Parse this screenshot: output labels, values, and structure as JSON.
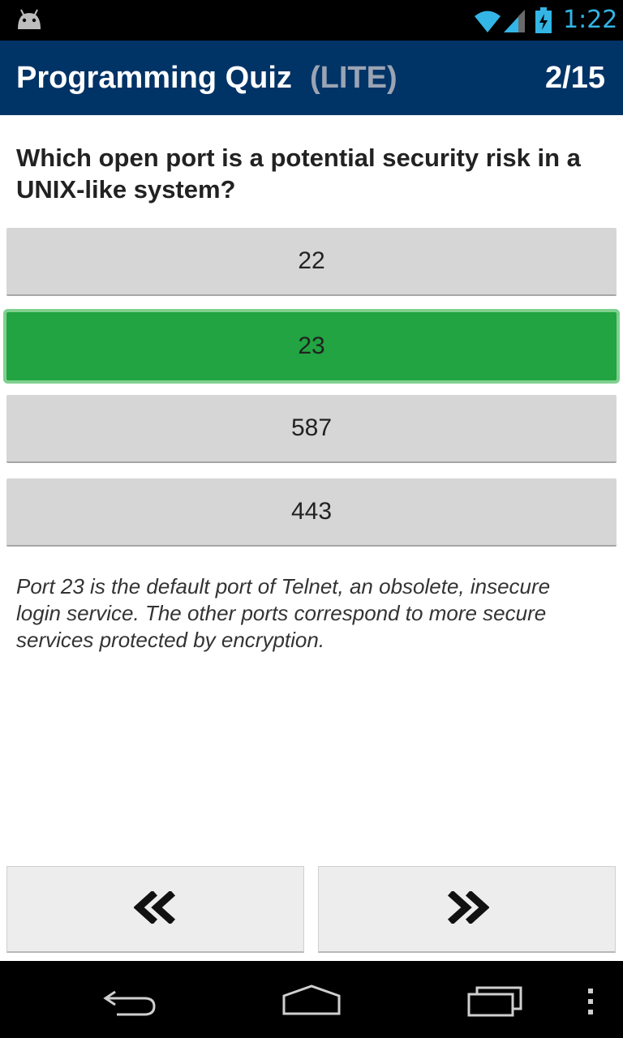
{
  "status_bar": {
    "time": "1:22",
    "icons": [
      "android-icon",
      "wifi-icon",
      "cell-signal-icon",
      "battery-charging-icon"
    ],
    "time_color": "#33b5e5"
  },
  "header": {
    "title": "Programming Quiz",
    "tag": "(LITE)",
    "progress": "2/15",
    "background": "#003366"
  },
  "question": {
    "text": "Which open port is a potential security risk in a UNIX-like system?"
  },
  "answers": [
    {
      "label": "22",
      "state": "default"
    },
    {
      "label": "23",
      "state": "correct"
    },
    {
      "label": "587",
      "state": "default"
    },
    {
      "label": "443",
      "state": "default"
    }
  ],
  "explanation": "Port 23 is the default port of Telnet, an obsolete, insecure login service. The other ports correspond to more secure services protected by encryption.",
  "navigation": {
    "previous_icon": "double-chevron-left-icon",
    "next_icon": "double-chevron-right-icon"
  },
  "system_nav": {
    "icons": [
      "back-icon",
      "home-icon",
      "recent-apps-icon",
      "overflow-menu-icon"
    ]
  },
  "colors": {
    "correct": "#21a441",
    "answer_default": "#d6d6d6"
  }
}
